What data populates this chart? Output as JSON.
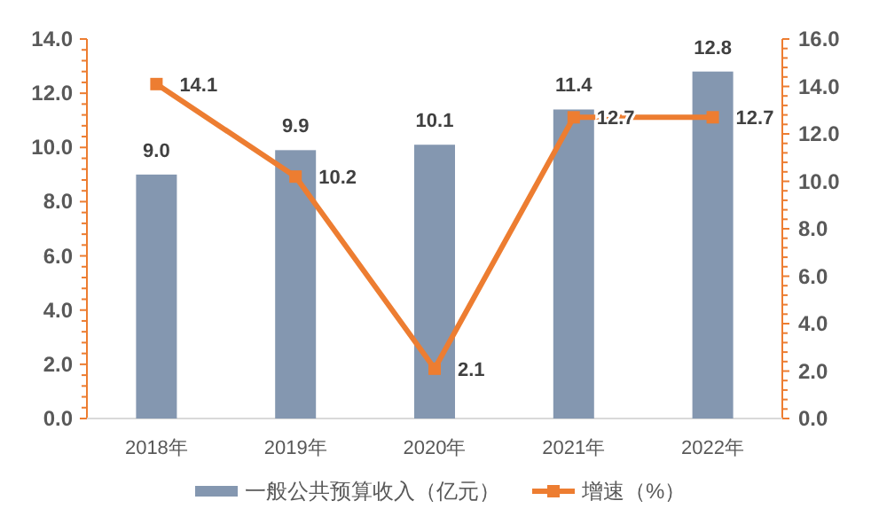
{
  "chart_data": {
    "type": "bar",
    "categories": [
      "2018年",
      "2019年",
      "2020年",
      "2021年",
      "2022年"
    ],
    "series": [
      {
        "name": "一般公共预算收入（亿元）",
        "color": "#8497b0",
        "values": [
          9.0,
          9.9,
          10.1,
          11.4,
          12.8
        ],
        "value_labels": [
          "9.0",
          "9.9",
          "10.1",
          "11.4",
          "12.8"
        ]
      },
      {
        "name": "增速（%）",
        "type": "line",
        "axis": "y2",
        "color": "#ed7d31",
        "marker": "square",
        "values": [
          14.1,
          10.2,
          2.1,
          12.7,
          12.7
        ],
        "value_labels": [
          "14.1",
          "10.2",
          "2.1",
          "12.7",
          "12.7"
        ]
      }
    ],
    "ylim": [
      0,
      14
    ],
    "yticks": [
      {
        "value": 0,
        "label": "0.0"
      },
      {
        "value": 2,
        "label": "2.0"
      },
      {
        "value": 4,
        "label": "4.0"
      },
      {
        "value": 6,
        "label": "6.0"
      },
      {
        "value": 8,
        "label": "8.0"
      },
      {
        "value": 10,
        "label": "10.0"
      },
      {
        "value": 12,
        "label": "12.0"
      },
      {
        "value": 14,
        "label": "14.0"
      }
    ],
    "y2lim": [
      0,
      16
    ],
    "y2ticks": [
      {
        "value": 0,
        "label": "0.0"
      },
      {
        "value": 2,
        "label": "2.0"
      },
      {
        "value": 4,
        "label": "4.0"
      },
      {
        "value": 6,
        "label": "6.0"
      },
      {
        "value": 8,
        "label": "8.0"
      },
      {
        "value": 10,
        "label": "10.0"
      },
      {
        "value": 12,
        "label": "12.0"
      },
      {
        "value": 14,
        "label": "14.0"
      },
      {
        "value": 16,
        "label": "16.0"
      }
    ],
    "legend": "bottom",
    "grid": false
  }
}
